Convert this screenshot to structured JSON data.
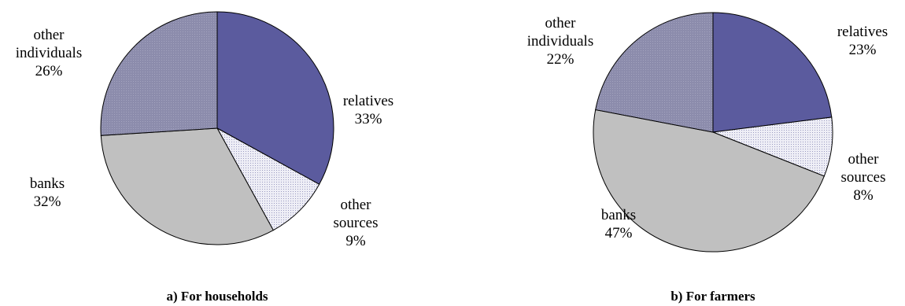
{
  "colors": {
    "relatives": "#5b5b9e",
    "other sources": "#dcdcec",
    "banks": "#c0c0c0",
    "other individuals": "#8c8cac",
    "outline": "#000000"
  },
  "chart_data": [
    {
      "type": "pie",
      "title": "a) For households",
      "slices": [
        {
          "name": "relatives",
          "label": "relatives",
          "value": 33,
          "value_label": "33%"
        },
        {
          "name": "other sources",
          "label": "other sources",
          "value": 9,
          "value_label": "9%"
        },
        {
          "name": "banks",
          "label": "banks",
          "value": 32,
          "value_label": "32%"
        },
        {
          "name": "other individuals",
          "label": "other individuals",
          "value": 26,
          "value_label": "26%"
        }
      ],
      "start_angle_deg": 0,
      "direction": "clockwise",
      "legend": "none"
    },
    {
      "type": "pie",
      "title": "b) For farmers",
      "slices": [
        {
          "name": "relatives",
          "label": "relatives",
          "value": 23,
          "value_label": "23%"
        },
        {
          "name": "other sources",
          "label": "other sources",
          "value": 8,
          "value_label": "8%"
        },
        {
          "name": "banks",
          "label": "banks",
          "value": 47,
          "value_label": "47%"
        },
        {
          "name": "other individuals",
          "label": "other individuals",
          "value": 22,
          "value_label": "22%"
        }
      ],
      "start_angle_deg": 0,
      "direction": "clockwise",
      "legend": "none"
    }
  ]
}
